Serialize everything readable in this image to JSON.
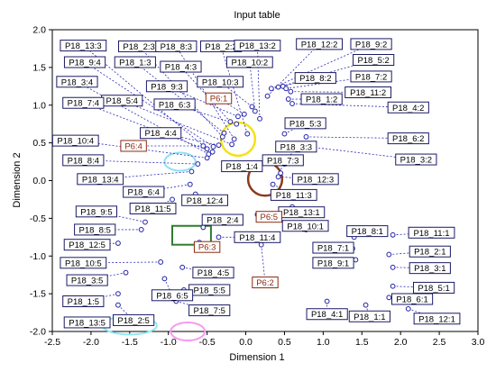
{
  "chart_data": {
    "type": "scatter",
    "title": "Input table",
    "xlabel": "Dimension 1",
    "ylabel": "Dimension 2",
    "xlim": [
      -2.5,
      3.0
    ],
    "ylim": [
      -2.0,
      2.0
    ],
    "xticks": [
      "-2.5",
      "-2.0",
      "-1.5",
      "-1.0",
      "-0.5",
      "0.0",
      "0.5",
      "1.0",
      "1.5",
      "2.0",
      "2.5",
      "3.0"
    ],
    "yticks": [
      "2.0",
      "1.5",
      "1.0",
      "0.5",
      "0.0",
      "-0.5",
      "-1.0",
      "-1.5",
      "-2.0"
    ],
    "grid": false,
    "point_color": "#1f1fa8",
    "line_color": "#2b2bb8",
    "highlight_color": "#8a2a12",
    "shapes": [
      {
        "kind": "circle",
        "x": -0.1,
        "y": 0.55,
        "r": 0.22,
        "color": "#f2e21a"
      },
      {
        "kind": "circle",
        "x": 0.25,
        "y": 0.02,
        "r": 0.22,
        "color": "#8b3b1e"
      },
      {
        "kind": "rect",
        "x0": -0.95,
        "y0": -0.85,
        "x1": -0.45,
        "y1": -0.6,
        "color": "#2d7d2d"
      },
      {
        "kind": "ellipse",
        "x": -0.85,
        "y": 0.25,
        "rx": 0.2,
        "ry": 0.12,
        "color": "#8fe0f5"
      },
      {
        "kind": "ellipse",
        "x": -1.5,
        "y": -1.92,
        "rx": 0.35,
        "ry": 0.12,
        "color": "#8fe8f5"
      },
      {
        "kind": "ellipse",
        "x": -0.75,
        "y": -2.0,
        "rx": 0.22,
        "ry": 0.12,
        "color": "#f59af2"
      }
    ],
    "points": [
      {
        "label": "P18_13:3",
        "x": -0.5,
        "y": 0.42,
        "lx": -2.1,
        "ly": 1.79
      },
      {
        "label": "P18_2:3",
        "x": -0.3,
        "y": 0.58,
        "lx": -1.38,
        "ly": 1.78
      },
      {
        "label": "P18_8:3",
        "x": -0.15,
        "y": 0.55,
        "lx": -0.9,
        "ly": 1.78
      },
      {
        "label": "P18_2:2",
        "x": 0.02,
        "y": 0.62,
        "lx": -0.32,
        "ly": 1.78
      },
      {
        "label": "P18_13:2",
        "x": 0.18,
        "y": 0.82,
        "lx": 0.15,
        "ly": 1.79
      },
      {
        "label": "P18_12:2",
        "x": 0.28,
        "y": 1.12,
        "lx": 0.95,
        "ly": 1.81
      },
      {
        "label": "P18_9:2",
        "x": 0.33,
        "y": 1.22,
        "lx": 1.62,
        "ly": 1.81
      },
      {
        "label": "P18_9:4",
        "x": -0.42,
        "y": 0.45,
        "lx": -2.08,
        "ly": 1.57
      },
      {
        "label": "P18_1:3",
        "x": -0.28,
        "y": 0.63,
        "lx": -1.43,
        "ly": 1.57
      },
      {
        "label": "P18_10:2",
        "x": 0.12,
        "y": 0.92,
        "lx": 0.05,
        "ly": 1.57
      },
      {
        "label": "P18_5:2",
        "x": 0.42,
        "y": 1.24,
        "lx": 1.65,
        "ly": 1.6
      },
      {
        "label": "P18_4:3",
        "x": -0.2,
        "y": 0.78,
        "lx": -0.84,
        "ly": 1.51
      },
      {
        "label": "P18_8:2",
        "x": 0.48,
        "y": 1.25,
        "lx": 0.9,
        "ly": 1.36
      },
      {
        "label": "P18_7:2",
        "x": 0.52,
        "y": 1.22,
        "lx": 1.62,
        "ly": 1.38
      },
      {
        "label": "P18_10:3",
        "x": 0.08,
        "y": 0.98,
        "lx": -0.33,
        "ly": 1.31
      },
      {
        "label": "P18_3:4",
        "x": -0.48,
        "y": 0.35,
        "lx": -2.18,
        "ly": 1.31
      },
      {
        "label": "P18_9:3",
        "x": -0.1,
        "y": 0.85,
        "lx": -1.02,
        "ly": 1.25
      },
      {
        "label": "P18_11:2",
        "x": 0.58,
        "y": 1.18,
        "lx": 1.58,
        "ly": 1.17
      },
      {
        "label": "P18_1:2",
        "x": 0.55,
        "y": 1.08,
        "lx": 0.98,
        "ly": 1.08
      },
      {
        "label": "P6:1",
        "x": -0.02,
        "y": 0.88,
        "lx": -0.35,
        "ly": 1.09,
        "highlight": true
      },
      {
        "label": "P18_5:4",
        "x": -0.18,
        "y": 0.48,
        "lx": -1.6,
        "ly": 1.06
      },
      {
        "label": "P18_7:4",
        "x": -0.43,
        "y": 0.38,
        "lx": -2.1,
        "ly": 1.03
      },
      {
        "label": "P18_6:3",
        "x": -0.12,
        "y": 0.75,
        "lx": -0.92,
        "ly": 1.01
      },
      {
        "label": "P18_4:2",
        "x": 0.6,
        "y": 1.02,
        "lx": 2.1,
        "ly": 0.97
      },
      {
        "label": "P18_5:3",
        "x": 0.5,
        "y": 0.62,
        "lx": 0.77,
        "ly": 0.76
      },
      {
        "label": "P18_4:4",
        "x": -0.35,
        "y": 0.47,
        "lx": -1.1,
        "ly": 0.63
      },
      {
        "label": "P18_10:4",
        "x": -0.5,
        "y": 0.3,
        "lx": -2.2,
        "ly": 0.53
      },
      {
        "label": "P18_6:2",
        "x": 0.78,
        "y": 0.58,
        "lx": 2.1,
        "ly": 0.56
      },
      {
        "label": "P6:4",
        "x": -0.55,
        "y": 0.46,
        "lx": -1.45,
        "ly": 0.46,
        "highlight": true
      },
      {
        "label": "P18_3:3",
        "x": 0.5,
        "y": 0.22,
        "lx": 0.65,
        "ly": 0.45
      },
      {
        "label": "P18_3:2",
        "x": 0.8,
        "y": 0.45,
        "lx": 2.2,
        "ly": 0.28
      },
      {
        "label": "P18_8:4",
        "x": -0.62,
        "y": 0.22,
        "lx": -2.1,
        "ly": 0.27
      },
      {
        "label": "P18_7:3",
        "x": 0.45,
        "y": 0.1,
        "lx": 0.48,
        "ly": 0.27
      },
      {
        "label": "P18_1:4",
        "x": -0.15,
        "y": 0.15,
        "lx": -0.05,
        "ly": 0.19
      },
      {
        "label": "P18_13:4",
        "x": -0.7,
        "y": 0.12,
        "lx": -1.88,
        "ly": 0.02
      },
      {
        "label": "P18_12:3",
        "x": 0.42,
        "y": 0.05,
        "lx": 0.9,
        "ly": 0.02
      },
      {
        "label": "P18_6:4",
        "x": -0.72,
        "y": -0.05,
        "lx": -1.32,
        "ly": -0.15
      },
      {
        "label": "P18_11:3",
        "x": 0.35,
        "y": -0.05,
        "lx": 0.62,
        "ly": -0.19
      },
      {
        "label": "P18_12:4",
        "x": -0.65,
        "y": -0.18,
        "lx": -0.53,
        "ly": -0.26
      },
      {
        "label": "P18_11:5",
        "x": -0.95,
        "y": -0.25,
        "lx": -1.2,
        "ly": -0.37
      },
      {
        "label": "P18_13:1",
        "x": 0.6,
        "y": -0.35,
        "lx": 0.72,
        "ly": -0.42
      },
      {
        "label": "P18_9:5",
        "x": -1.3,
        "y": -0.55,
        "lx": -1.93,
        "ly": -0.41
      },
      {
        "label": "P6:5",
        "x": 0.15,
        "y": -0.45,
        "lx": 0.3,
        "ly": -0.48,
        "highlight": true
      },
      {
        "label": "P18_2:4",
        "x": -0.55,
        "y": -0.62,
        "lx": -0.3,
        "ly": -0.52
      },
      {
        "label": "P18_10:1",
        "x": 0.78,
        "y": -0.65,
        "lx": 0.77,
        "ly": -0.6
      },
      {
        "label": "P18_8:5",
        "x": -1.35,
        "y": -0.65,
        "lx": -1.95,
        "ly": -0.65
      },
      {
        "label": "P18_8:1",
        "x": 1.4,
        "y": -0.75,
        "lx": 1.57,
        "ly": -0.67
      },
      {
        "label": "P18_11:1",
        "x": 1.9,
        "y": -0.72,
        "lx": 2.4,
        "ly": -0.69
      },
      {
        "label": "P18_11:4",
        "x": -0.35,
        "y": -0.75,
        "lx": 0.15,
        "ly": -0.75
      },
      {
        "label": "P18_12:5",
        "x": -1.65,
        "y": -0.83,
        "lx": -2.05,
        "ly": -0.85
      },
      {
        "label": "P6:3",
        "x": -0.6,
        "y": -0.82,
        "lx": -0.5,
        "ly": -0.88,
        "highlight": true
      },
      {
        "label": "P18_7:1",
        "x": 1.38,
        "y": -0.9,
        "lx": 1.13,
        "ly": -0.89
      },
      {
        "label": "P18_2:1",
        "x": 1.85,
        "y": -0.98,
        "lx": 2.38,
        "ly": -0.94
      },
      {
        "label": "P6:2",
        "x": 0.2,
        "y": -0.85,
        "lx": 0.25,
        "ly": -1.35,
        "highlight": true
      },
      {
        "label": "P18_9:1",
        "x": 1.42,
        "y": -1.05,
        "lx": 1.13,
        "ly": -1.09
      },
      {
        "label": "P18_10:5",
        "x": -1.1,
        "y": -1.08,
        "lx": -2.1,
        "ly": -1.09
      },
      {
        "label": "P18_3:1",
        "x": 1.9,
        "y": -1.15,
        "lx": 2.38,
        "ly": -1.16
      },
      {
        "label": "P18_4:5",
        "x": -0.82,
        "y": -1.15,
        "lx": -0.42,
        "ly": -1.22
      },
      {
        "label": "P18_3:5",
        "x": -1.55,
        "y": -1.22,
        "lx": -2.05,
        "ly": -1.32
      },
      {
        "label": "P18_5:1",
        "x": 1.9,
        "y": -1.4,
        "lx": 2.43,
        "ly": -1.42
      },
      {
        "label": "P18_5:5",
        "x": -0.8,
        "y": -1.45,
        "lx": -0.47,
        "ly": -1.45
      },
      {
        "label": "P18_6:5",
        "x": -1.05,
        "y": -1.3,
        "lx": -0.95,
        "ly": -1.52
      },
      {
        "label": "P18_6:1",
        "x": 1.85,
        "y": -1.55,
        "lx": 2.15,
        "ly": -1.57
      },
      {
        "label": "P18_1:5",
        "x": -1.65,
        "y": -1.5,
        "lx": -2.1,
        "ly": -1.6
      },
      {
        "label": "P18_7:5",
        "x": -0.9,
        "y": -1.6,
        "lx": -0.47,
        "ly": -1.72
      },
      {
        "label": "P18_4:1",
        "x": 1.05,
        "y": -1.6,
        "lx": 1.05,
        "ly": -1.77
      },
      {
        "label": "P18_12:1",
        "x": 2.1,
        "y": -1.7,
        "lx": 2.47,
        "ly": -1.83
      },
      {
        "label": "P18_1:1",
        "x": 1.55,
        "y": -1.65,
        "lx": 1.6,
        "ly": -1.8
      },
      {
        "label": "P18_13:5",
        "x": -1.9,
        "y": -1.85,
        "lx": -2.05,
        "ly": -1.88
      },
      {
        "label": "P18_2:5",
        "x": -1.65,
        "y": -1.65,
        "lx": -1.45,
        "ly": -1.85
      }
    ]
  }
}
